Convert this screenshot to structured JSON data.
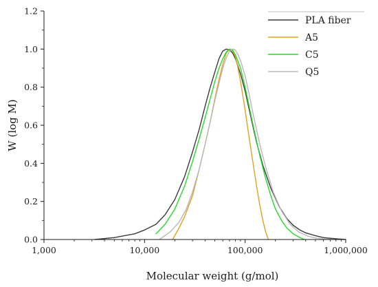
{
  "chart_data": {
    "type": "line",
    "title": "",
    "xlabel": "Molecular weight (g/mol)",
    "ylabel": "W (log M)",
    "xscale": "log",
    "xlim": [
      1000,
      1000000
    ],
    "ylim": [
      0,
      1.2
    ],
    "x_ticks": [
      1000,
      10000,
      100000,
      1000000
    ],
    "x_tick_labels": [
      "1,000",
      "10,000",
      "100,000",
      "1,000,000"
    ],
    "y_ticks": [
      0,
      0.2,
      0.4,
      0.6,
      0.8,
      1.0,
      1.2
    ],
    "y_tick_labels": [
      "0.0",
      "0.2",
      "0.4",
      "0.6",
      "0.8",
      "1.0",
      "1.2"
    ],
    "grid": false,
    "legend_position": "top-right",
    "series": [
      {
        "name": "PLA fiber",
        "color": "#3a3a3a",
        "x": [
          3200,
          5000,
          8000,
          10000,
          13000,
          16000,
          20000,
          25000,
          30000,
          35000,
          40000,
          45000,
          50000,
          55000,
          60000,
          65000,
          70000,
          75000,
          80000,
          90000,
          100000,
          110000,
          120000,
          130000,
          150000,
          180000,
          220000,
          260000,
          300000,
          350000,
          400000,
          500000,
          600000,
          800000,
          1000000
        ],
        "y": [
          0.0,
          0.01,
          0.03,
          0.05,
          0.08,
          0.13,
          0.21,
          0.33,
          0.46,
          0.58,
          0.7,
          0.8,
          0.88,
          0.95,
          0.99,
          1.0,
          0.995,
          0.98,
          0.95,
          0.87,
          0.78,
          0.68,
          0.59,
          0.51,
          0.39,
          0.27,
          0.17,
          0.11,
          0.075,
          0.05,
          0.035,
          0.02,
          0.01,
          0.004,
          0.0
        ]
      },
      {
        "name": "A5",
        "color": "#e3a020",
        "x": [
          19000,
          22000,
          25000,
          30000,
          35000,
          40000,
          45000,
          50000,
          55000,
          60000,
          65000,
          70000,
          75000,
          80000,
          85000,
          90000,
          100000,
          110000,
          120000,
          130000,
          140000,
          150000,
          160000,
          170000
        ],
        "y": [
          0.0,
          0.06,
          0.12,
          0.23,
          0.37,
          0.5,
          0.62,
          0.74,
          0.84,
          0.92,
          0.98,
          1.0,
          0.99,
          0.96,
          0.9,
          0.83,
          0.68,
          0.53,
          0.4,
          0.28,
          0.18,
          0.1,
          0.04,
          0.0
        ]
      },
      {
        "name": "C5",
        "color": "#22dd22",
        "x": [
          13000,
          16000,
          20000,
          25000,
          30000,
          35000,
          40000,
          45000,
          50000,
          55000,
          60000,
          65000,
          70000,
          75000,
          80000,
          90000,
          100000,
          120000,
          140000,
          160000,
          180000,
          200000,
          230000,
          260000,
          300000,
          350000,
          390000
        ],
        "y": [
          0.03,
          0.08,
          0.16,
          0.28,
          0.41,
          0.53,
          0.64,
          0.74,
          0.83,
          0.9,
          0.95,
          0.985,
          1.0,
          0.995,
          0.97,
          0.9,
          0.8,
          0.6,
          0.44,
          0.32,
          0.23,
          0.16,
          0.1,
          0.06,
          0.03,
          0.01,
          0.0
        ]
      },
      {
        "name": "Q5",
        "color": "#b8b8b8",
        "x": [
          14000,
          18000,
          22000,
          26000,
          30000,
          35000,
          40000,
          45000,
          50000,
          55000,
          60000,
          65000,
          70000,
          75000,
          80000,
          85000,
          90000,
          100000,
          110000,
          120000,
          140000,
          160000,
          190000,
          230000,
          280000,
          340000,
          420000,
          500000,
          600000,
          750000
        ],
        "y": [
          0.0,
          0.04,
          0.09,
          0.16,
          0.25,
          0.37,
          0.5,
          0.62,
          0.73,
          0.82,
          0.9,
          0.955,
          0.99,
          1.0,
          0.995,
          0.97,
          0.94,
          0.86,
          0.76,
          0.66,
          0.5,
          0.38,
          0.25,
          0.15,
          0.08,
          0.04,
          0.018,
          0.008,
          0.003,
          0.0
        ]
      }
    ]
  }
}
